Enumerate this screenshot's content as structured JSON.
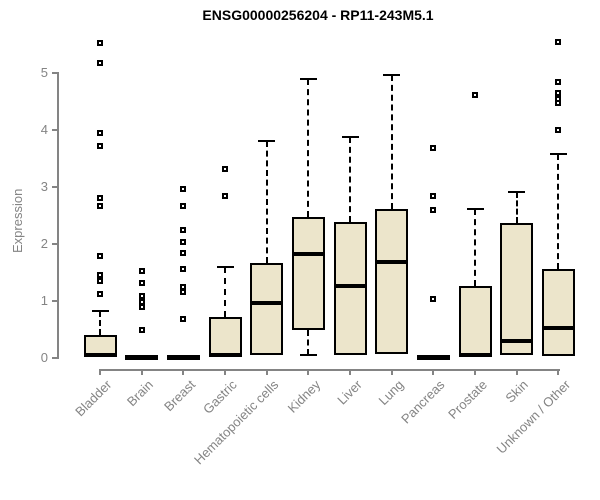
{
  "title": "ENSG00000256204 - RP11-243M5.1",
  "chart_data": {
    "type": "boxplot",
    "title": "ENSG00000256204 - RP11-243M5.1",
    "xlabel": "",
    "ylabel": "Expression",
    "ylim": [
      0,
      5.6
    ],
    "yticks": [
      0,
      1,
      2,
      3,
      4,
      5
    ],
    "grid": false,
    "legend": "none",
    "categories": [
      "Bladder",
      "Brain",
      "Breast",
      "Gastric",
      "Hematopoietic cells",
      "Kidney",
      "Liver",
      "Lung",
      "Pancreas",
      "Prostate",
      "Skin",
      "Unknown / Other"
    ],
    "boxes": [
      {
        "category": "Bladder",
        "whisker_low": 0.02,
        "q1": 0.02,
        "median": 0.05,
        "q3": 0.4,
        "whisker_high": 0.82,
        "outliers": [
          5.53,
          5.17,
          3.94,
          3.72,
          2.8,
          2.67,
          1.79,
          1.46,
          1.35,
          1.12
        ]
      },
      {
        "category": "Brain",
        "whisker_low": 0.0,
        "q1": 0.0,
        "median": 0.02,
        "q3": 0.04,
        "whisker_high": 0.04,
        "outliers": [
          1.53,
          1.32,
          1.08,
          0.98,
          0.9,
          0.49
        ]
      },
      {
        "category": "Breast",
        "whisker_low": 0.0,
        "q1": 0.0,
        "median": 0.02,
        "q3": 0.04,
        "whisker_high": 0.04,
        "outliers": [
          2.96,
          2.67,
          2.25,
          2.04,
          1.84,
          1.56,
          1.25,
          1.15,
          0.68
        ]
      },
      {
        "category": "Gastric",
        "whisker_low": 0.03,
        "q1": 0.03,
        "median": 0.05,
        "q3": 0.72,
        "whisker_high": 1.6,
        "outliers": [
          3.31,
          2.84
        ]
      },
      {
        "category": "Hematopoietic cells",
        "whisker_low": 0.06,
        "q1": 0.06,
        "median": 0.97,
        "q3": 1.67,
        "whisker_high": 3.81,
        "outliers": []
      },
      {
        "category": "Kidney",
        "whisker_low": 0.05,
        "q1": 0.49,
        "median": 1.82,
        "q3": 2.48,
        "whisker_high": 4.89,
        "outliers": []
      },
      {
        "category": "Liver",
        "whisker_low": 0.05,
        "q1": 0.05,
        "median": 1.26,
        "q3": 2.38,
        "whisker_high": 3.88,
        "outliers": []
      },
      {
        "category": "Lung",
        "whisker_low": 0.07,
        "q1": 0.07,
        "median": 1.68,
        "q3": 2.61,
        "whisker_high": 4.96,
        "outliers": []
      },
      {
        "category": "Pancreas",
        "whisker_low": 0.0,
        "q1": 0.0,
        "median": 0.02,
        "q3": 0.04,
        "whisker_high": 0.04,
        "outliers": [
          3.68,
          2.85,
          2.6,
          1.03
        ]
      },
      {
        "category": "Prostate",
        "whisker_low": 0.02,
        "q1": 0.02,
        "median": 0.05,
        "q3": 1.26,
        "whisker_high": 2.61,
        "outliers": [
          4.61
        ]
      },
      {
        "category": "Skin",
        "whisker_low": 0.05,
        "q1": 0.05,
        "median": 0.3,
        "q3": 2.37,
        "whisker_high": 2.92,
        "outliers": []
      },
      {
        "category": "Unknown / Other",
        "whisker_low": 0.04,
        "q1": 0.04,
        "median": 0.53,
        "q3": 1.57,
        "whisker_high": 3.58,
        "outliers": [
          5.54,
          4.84,
          4.65,
          4.55,
          4.47,
          4.0
        ]
      }
    ],
    "colors": {
      "box_fill": "#ECE5CB",
      "box_border": "#000000",
      "median": "#000000",
      "whisker": "#000000",
      "axis": "#848484",
      "tick_label": "#848484",
      "title": "#000000",
      "background": "#FFFFFF"
    }
  }
}
